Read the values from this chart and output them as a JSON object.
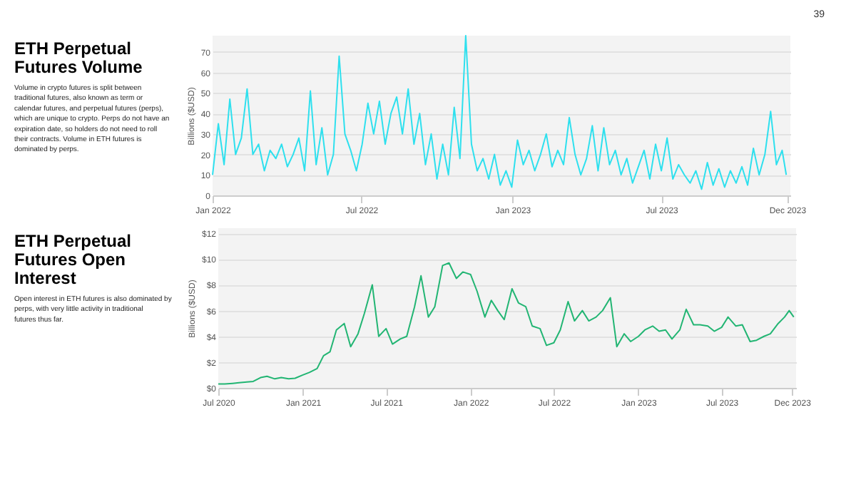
{
  "chart_data": [
    {
      "type": "line",
      "title": "ETH Perpetual Futures Volume",
      "subtitle": "Volume in crypto futures is split between traditional futures, also known as term or calendar futures, and perpetual futures (perps), which are unique to crypto. Perps do not have an expiration date, so holders do not need to roll their contracts. Volume in ETH futures is dominated by perps.",
      "ylabel": "Billions ($USD)",
      "annotations": [
        "39"
      ],
      "x": [
        "2022-01-01",
        "2022-01-08",
        "2022-01-15",
        "2022-01-22",
        "2022-01-29",
        "2022-02-05",
        "2022-02-12",
        "2022-02-19",
        "2022-02-26",
        "2022-03-05",
        "2022-03-12",
        "2022-03-19",
        "2022-03-26",
        "2022-04-02",
        "2022-04-09",
        "2022-04-16",
        "2022-04-23",
        "2022-04-30",
        "2022-05-07",
        "2022-05-14",
        "2022-05-21",
        "2022-05-28",
        "2022-06-04",
        "2022-06-11",
        "2022-06-18",
        "2022-06-25",
        "2022-07-02",
        "2022-07-09",
        "2022-07-16",
        "2022-07-23",
        "2022-07-30",
        "2022-08-06",
        "2022-08-13",
        "2022-08-20",
        "2022-08-27",
        "2022-09-03",
        "2022-09-10",
        "2022-09-17",
        "2022-09-24",
        "2022-10-01",
        "2022-10-08",
        "2022-10-15",
        "2022-10-22",
        "2022-10-29",
        "2022-11-05",
        "2022-11-12",
        "2022-11-19",
        "2022-11-26",
        "2022-12-03",
        "2022-12-10",
        "2022-12-17",
        "2022-12-24",
        "2022-12-31",
        "2023-01-07",
        "2023-01-14",
        "2023-01-21",
        "2023-01-28",
        "2023-02-04",
        "2023-02-11",
        "2023-02-18",
        "2023-02-25",
        "2023-03-04",
        "2023-03-11",
        "2023-03-18",
        "2023-03-25",
        "2023-04-01",
        "2023-04-08",
        "2023-04-15",
        "2023-04-22",
        "2023-04-29",
        "2023-05-06",
        "2023-05-13",
        "2023-05-20",
        "2023-05-27",
        "2023-06-03",
        "2023-06-10",
        "2023-06-17",
        "2023-06-24",
        "2023-07-01",
        "2023-07-08",
        "2023-07-15",
        "2023-07-22",
        "2023-07-29",
        "2023-08-05",
        "2023-08-12",
        "2023-08-19",
        "2023-08-26",
        "2023-09-02",
        "2023-09-09",
        "2023-09-16",
        "2023-09-23",
        "2023-09-30",
        "2023-10-07",
        "2023-10-14",
        "2023-10-21",
        "2023-10-28",
        "2023-11-04",
        "2023-11-11",
        "2023-11-18",
        "2023-11-25",
        "2023-11-30"
      ],
      "series": [
        {
          "color": "#2ee0ee",
          "values": [
            10,
            35,
            15,
            47,
            20,
            28,
            52,
            20,
            25,
            12,
            22,
            18,
            25,
            14,
            20,
            28,
            12,
            51,
            15,
            33,
            10,
            20,
            68,
            30,
            22,
            12,
            25,
            45,
            30,
            46,
            25,
            40,
            48,
            30,
            52,
            25,
            40,
            15,
            30,
            8,
            25,
            10,
            43,
            18,
            78,
            25,
            12,
            18,
            8,
            20,
            5,
            12,
            4,
            27,
            15,
            22,
            12,
            20,
            30,
            14,
            22,
            15,
            38,
            20,
            10,
            18,
            34,
            12,
            33,
            15,
            22,
            10,
            18,
            6,
            14,
            22,
            8,
            25,
            12,
            28,
            8,
            15,
            10,
            6,
            12,
            3,
            16,
            5,
            13,
            4,
            12,
            6,
            14,
            5,
            23,
            10,
            20,
            41,
            15,
            22,
            10
          ]
        }
      ],
      "xlim": [
        "2022-01-01",
        "2023-12-05"
      ],
      "xticks": [
        {
          "value": "2022-01-01",
          "label": "Jan 2022"
        },
        {
          "value": "2022-07-01",
          "label": "Jul 2022"
        },
        {
          "value": "2023-01-01",
          "label": "Jan 2023"
        },
        {
          "value": "2023-07-01",
          "label": "Jul 2023"
        },
        {
          "value": "2023-12-01",
          "label": "Dec 2023"
        }
      ],
      "ylim": [
        0,
        78
      ],
      "yticks": [
        0,
        10,
        20,
        30,
        40,
        50,
        60,
        70
      ],
      "grid": "y",
      "legend": false
    },
    {
      "type": "line",
      "title": "ETH Perpetual Futures Open Interest",
      "subtitle": "Open interest in ETH futures is also dominated by perps, with very little activity in traditional futures thus far.",
      "ylabel": "Billions ($USD)",
      "x": [
        "2020-07-01",
        "2020-07-15",
        "2020-08-01",
        "2020-08-15",
        "2020-09-01",
        "2020-09-15",
        "2020-10-01",
        "2020-10-15",
        "2020-11-01",
        "2020-11-15",
        "2020-12-01",
        "2020-12-15",
        "2021-01-01",
        "2021-01-15",
        "2021-02-01",
        "2021-02-15",
        "2021-03-01",
        "2021-03-15",
        "2021-04-01",
        "2021-04-15",
        "2021-05-01",
        "2021-05-15",
        "2021-06-01",
        "2021-06-15",
        "2021-07-01",
        "2021-07-15",
        "2021-08-01",
        "2021-08-15",
        "2021-09-01",
        "2021-09-15",
        "2021-10-01",
        "2021-10-15",
        "2021-11-01",
        "2021-11-15",
        "2021-12-01",
        "2021-12-15",
        "2022-01-01",
        "2022-01-15",
        "2022-02-01",
        "2022-02-15",
        "2022-03-01",
        "2022-03-15",
        "2022-04-01",
        "2022-04-15",
        "2022-05-01",
        "2022-05-15",
        "2022-06-01",
        "2022-06-15",
        "2022-07-01",
        "2022-07-15",
        "2022-08-01",
        "2022-08-15",
        "2022-09-01",
        "2022-09-15",
        "2022-10-01",
        "2022-10-15",
        "2022-11-01",
        "2022-11-15",
        "2022-12-01",
        "2022-12-15",
        "2023-01-01",
        "2023-01-15",
        "2023-02-01",
        "2023-02-15",
        "2023-03-01",
        "2023-03-15",
        "2023-04-01",
        "2023-04-15",
        "2023-05-01",
        "2023-05-15",
        "2023-06-01",
        "2023-06-15",
        "2023-07-01",
        "2023-07-15",
        "2023-08-01",
        "2023-08-15",
        "2023-09-01",
        "2023-09-15",
        "2023-10-01",
        "2023-10-15",
        "2023-11-01",
        "2023-11-15",
        "2023-11-25",
        "2023-12-05"
      ],
      "series": [
        {
          "color": "#22b573",
          "values": [
            0.3,
            0.3,
            0.35,
            0.4,
            0.45,
            0.5,
            0.8,
            0.9,
            0.7,
            0.8,
            0.7,
            0.75,
            1.0,
            1.2,
            1.5,
            2.5,
            2.8,
            4.5,
            5.0,
            3.2,
            4.2,
            5.8,
            8.0,
            4.0,
            4.6,
            3.4,
            3.8,
            4.0,
            6.3,
            8.7,
            5.5,
            6.3,
            9.5,
            9.7,
            8.5,
            9.0,
            8.8,
            7.5,
            5.5,
            6.8,
            6.0,
            5.3,
            7.7,
            6.6,
            6.3,
            4.8,
            4.6,
            3.3,
            3.5,
            4.5,
            6.7,
            5.2,
            6.0,
            5.2,
            5.5,
            6.0,
            7.0,
            3.2,
            4.2,
            3.6,
            4.0,
            4.5,
            4.8,
            4.4,
            4.5,
            3.8,
            4.5,
            6.1,
            4.9,
            4.9,
            4.8,
            4.4,
            4.7,
            5.5,
            4.8,
            4.9,
            3.6,
            3.7,
            4.0,
            4.2,
            5.0,
            5.5,
            6.0,
            5.5
          ]
        }
      ],
      "xlim": [
        "2020-07-01",
        "2023-12-10"
      ],
      "xticks": [
        {
          "value": "2020-07-01",
          "label": "Jul 2020"
        },
        {
          "value": "2021-01-01",
          "label": "Jan 2021"
        },
        {
          "value": "2021-07-01",
          "label": "Jul 2021"
        },
        {
          "value": "2022-01-01",
          "label": "Jan 2022"
        },
        {
          "value": "2022-07-01",
          "label": "Jul 2022"
        },
        {
          "value": "2023-01-01",
          "label": "Jan 2023"
        },
        {
          "value": "2023-07-01",
          "label": "Jul 2023"
        },
        {
          "value": "2023-12-01",
          "label": "Dec 2023"
        }
      ],
      "ylim": [
        0,
        12.4
      ],
      "yticks": [
        {
          "value": 0,
          "label": "$0"
        },
        {
          "value": 2,
          "label": "$2"
        },
        {
          "value": 4,
          "label": "$4"
        },
        {
          "value": 6,
          "label": "$6"
        },
        {
          "value": 8,
          "label": "$8"
        },
        {
          "value": 10,
          "label": "$10"
        },
        {
          "value": 12,
          "label": "$12"
        }
      ],
      "grid": "y",
      "legend": false
    }
  ]
}
